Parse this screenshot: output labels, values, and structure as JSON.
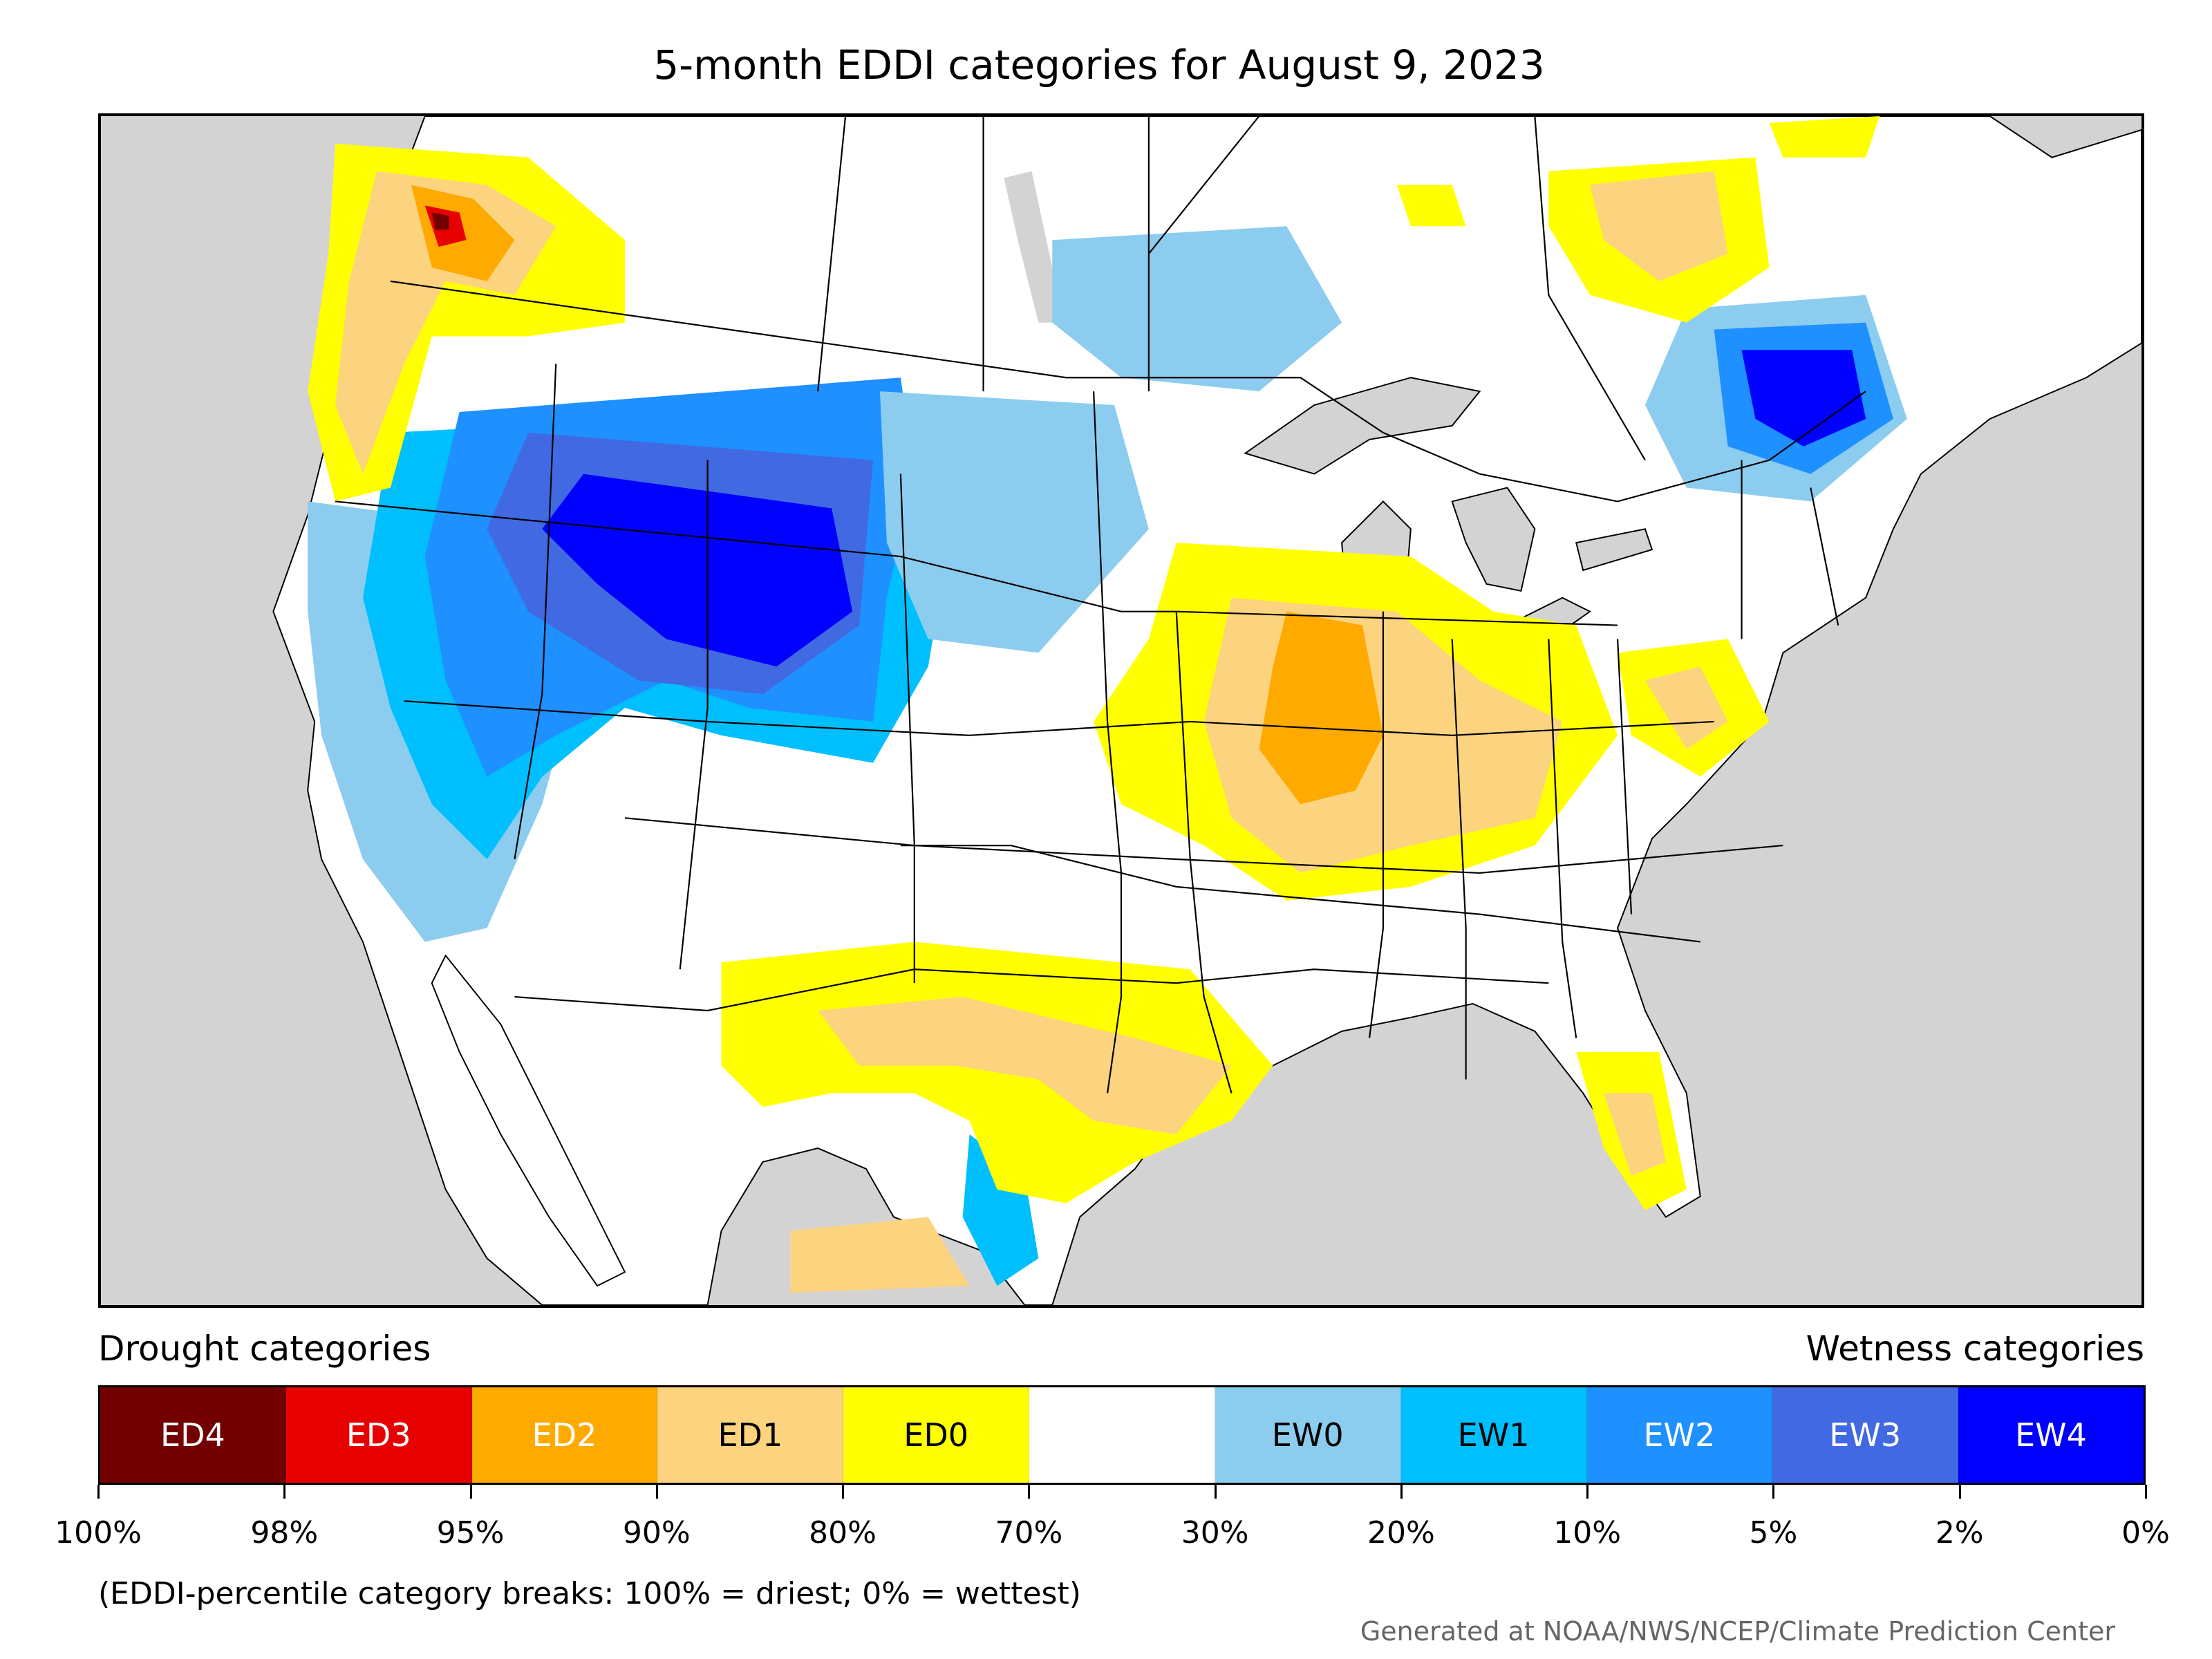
{
  "title": "5-month EDDI categories for August 9, 2023",
  "legend": {
    "drought_heading": "Drought categories",
    "wetness_heading": "Wetness categories",
    "categories": [
      {
        "label": "ED4",
        "color": "#730000",
        "text_color": "#ffffff"
      },
      {
        "label": "ED3",
        "color": "#e60000",
        "text_color": "#ffffff"
      },
      {
        "label": "ED2",
        "color": "#ffaa00",
        "text_color": "#ffffff"
      },
      {
        "label": "ED1",
        "color": "#fcd37f",
        "text_color": "#000000"
      },
      {
        "label": "ED0",
        "color": "#ffff00",
        "text_color": "#000000"
      },
      {
        "label": "",
        "color": "#ffffff",
        "text_color": "#000000"
      },
      {
        "label": "EW0",
        "color": "#8ccdef",
        "text_color": "#000000"
      },
      {
        "label": "EW1",
        "color": "#00bfff",
        "text_color": "#000000"
      },
      {
        "label": "EW2",
        "color": "#1e90ff",
        "text_color": "#ffffff"
      },
      {
        "label": "EW3",
        "color": "#4169e1",
        "text_color": "#ffffff"
      },
      {
        "label": "EW4",
        "color": "#0000ff",
        "text_color": "#ffffff"
      }
    ],
    "ticks": [
      "100%",
      "98%",
      "95%",
      "90%",
      "80%",
      "70%",
      "30%",
      "20%",
      "10%",
      "5%",
      "2%",
      "0%"
    ]
  },
  "footnote": "(EDDI-percentile category breaks: 100% = driest; 0% = wettest)",
  "credit": "Generated at NOAA/NWS/NCEP/Climate Prediction Center",
  "map": {
    "background_color": "#d3d3d3",
    "land_color": "#ffffff",
    "border_color": "#000000"
  }
}
